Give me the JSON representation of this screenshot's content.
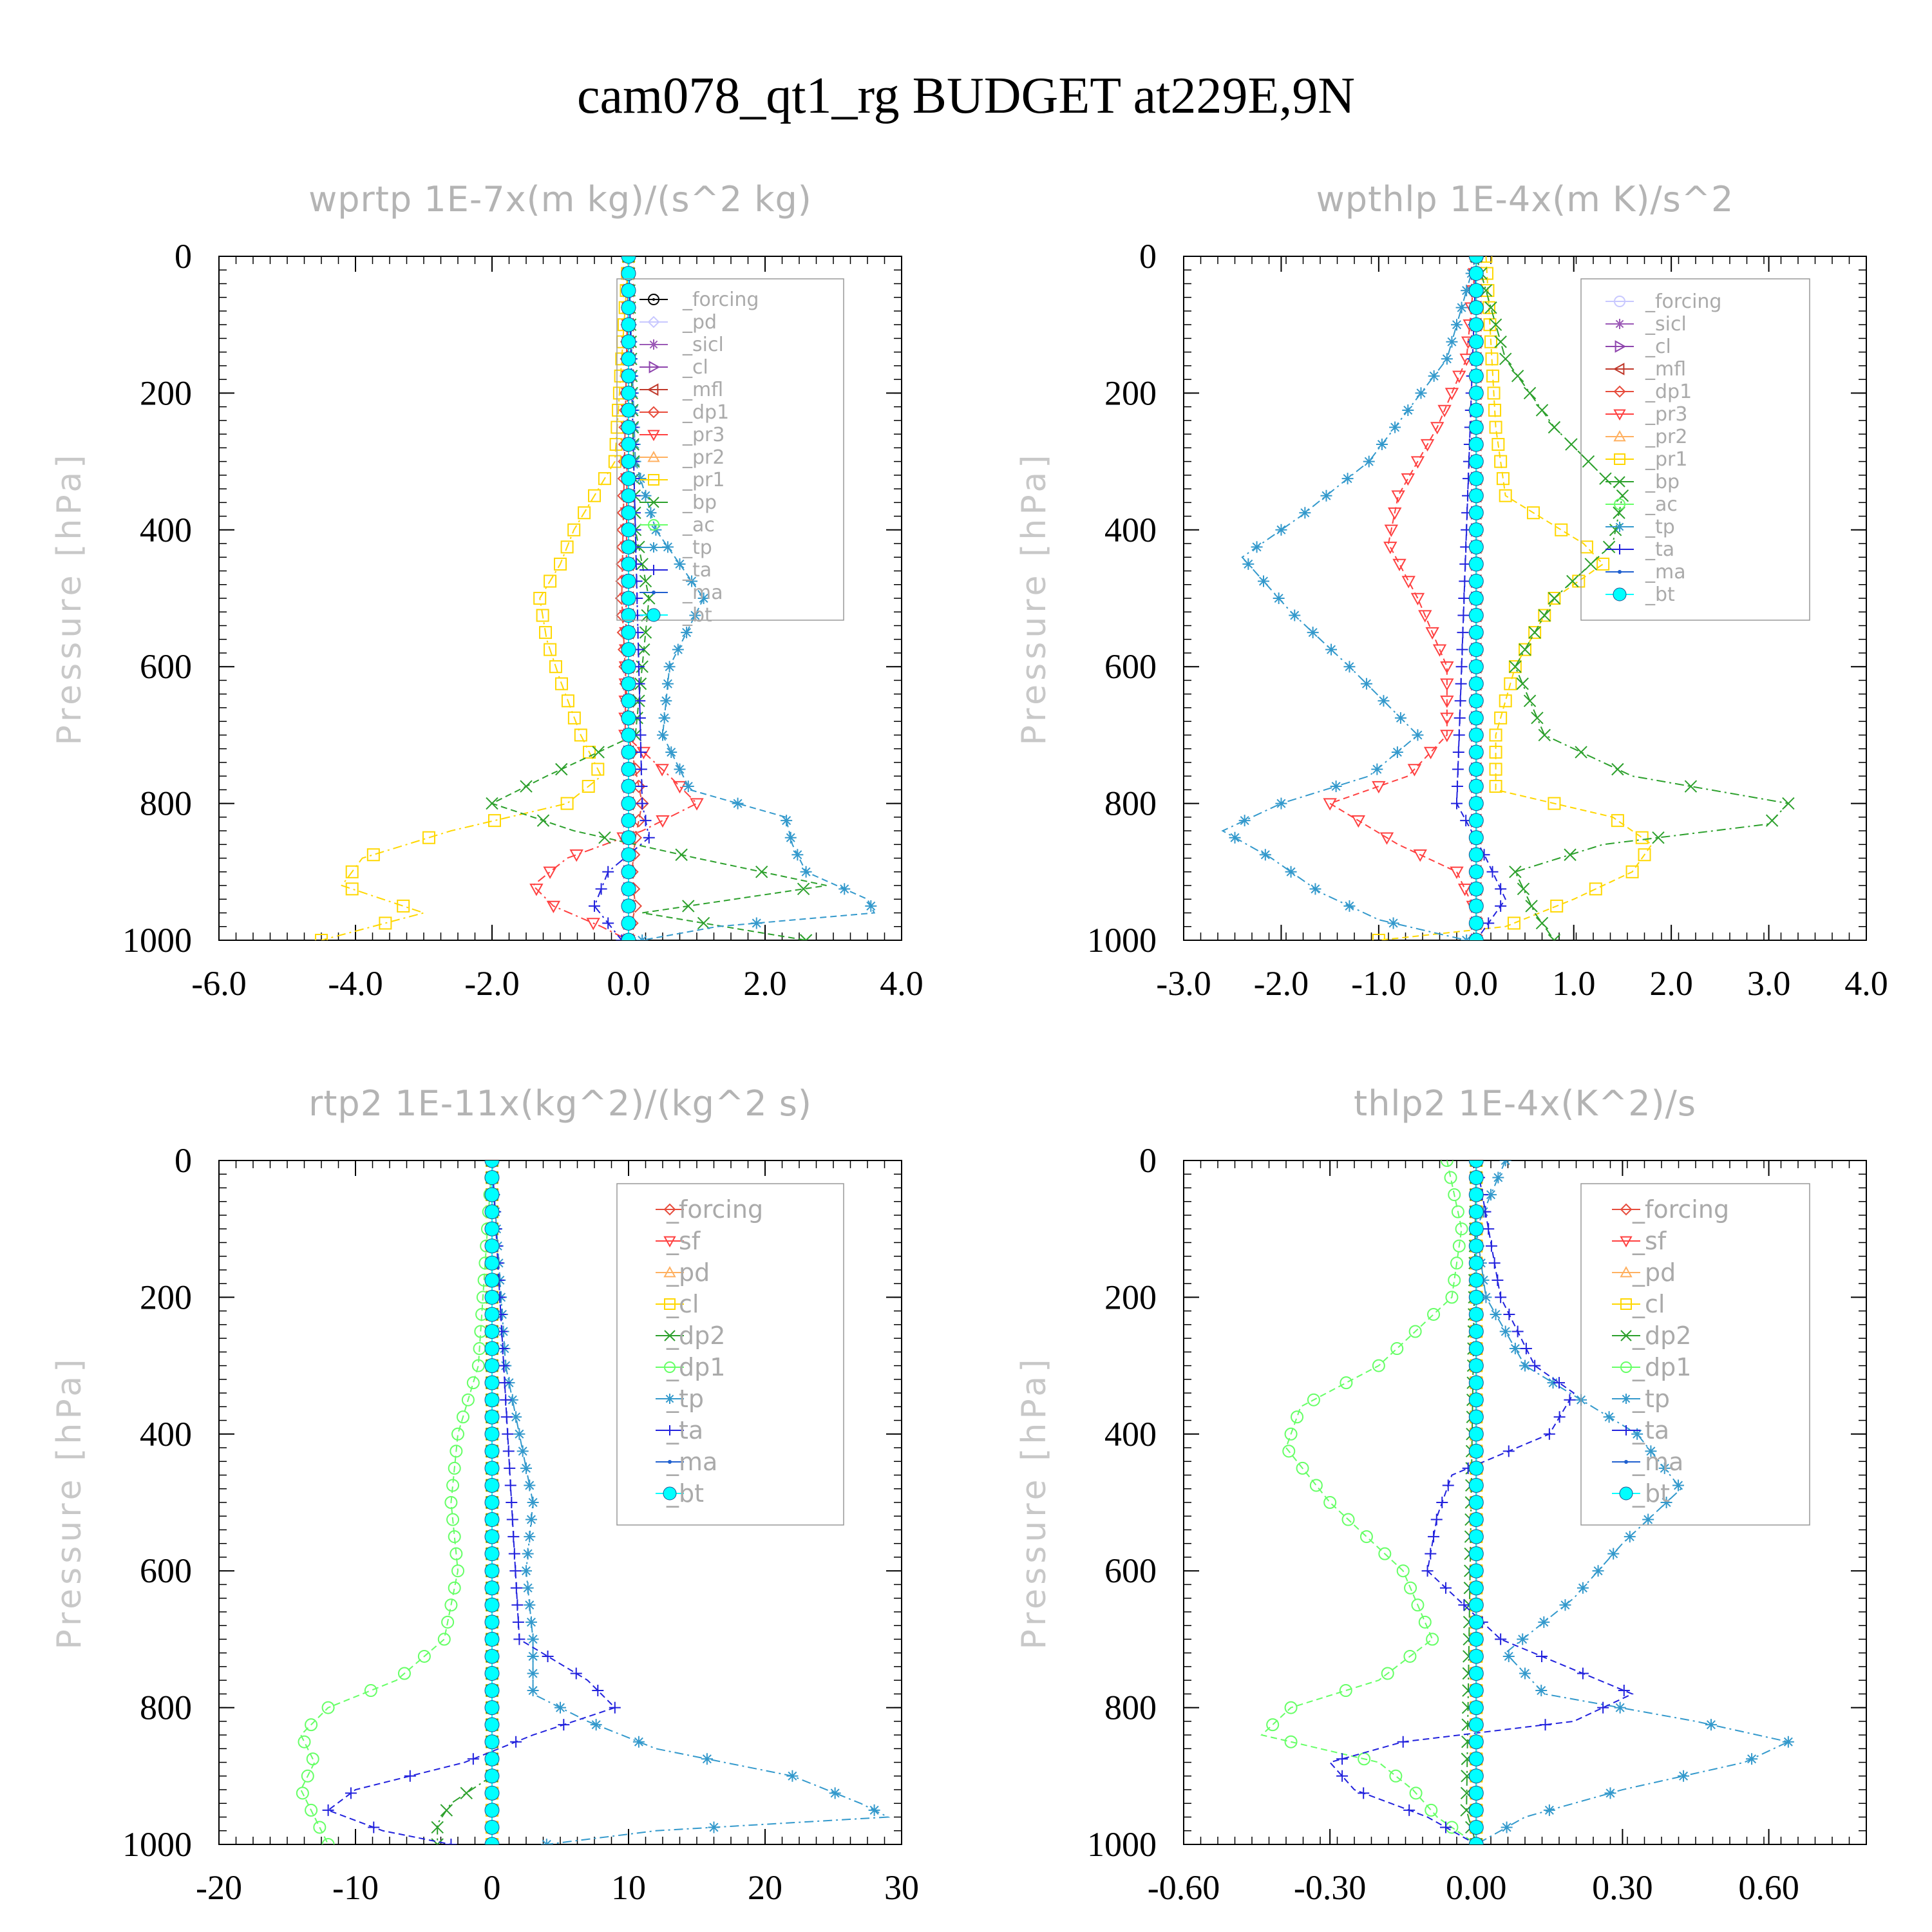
{
  "title": "cam078_qt1_rg  BUDGET at229E,9N",
  "chart_data": [
    {
      "type": "line",
      "title": "wprtp  1E-7x(m kg)/(s^2 kg)",
      "ylabel": "Pressure [hPa]",
      "xlim": [
        -6,
        4
      ],
      "ylim": [
        1000,
        0
      ],
      "xticks": [
        "-6.0",
        "-4.0",
        "-2.0",
        "0.0",
        "2.0",
        "4.0"
      ],
      "yticks": [
        "0",
        "200",
        "400",
        "600",
        "800",
        "1000"
      ],
      "legend": "top-right",
      "series": [
        {
          "name": "_forcing",
          "color": "#000000",
          "marker": "circle-dot",
          "p": [
            0,
            1000
          ],
          "x": [
            0,
            0
          ]
        },
        {
          "name": "_pd",
          "color": "#c8c8ff",
          "marker": "diamond",
          "p": [
            0,
            1000
          ],
          "x": [
            0,
            0
          ]
        },
        {
          "name": "_sicl",
          "color": "#9b59b6",
          "marker": "star",
          "p": [
            0,
            1000
          ],
          "x": [
            0,
            0
          ]
        },
        {
          "name": "_cl",
          "color": "#8e44ad",
          "marker": "tri-right",
          "p": [
            0,
            1000
          ],
          "x": [
            0,
            0
          ]
        },
        {
          "name": "_mfl",
          "color": "#c0392b",
          "marker": "tri-left",
          "p": [
            0,
            1000
          ],
          "x": [
            0,
            0
          ]
        },
        {
          "name": "_dp1",
          "color": "#e74c3c",
          "marker": "diamond",
          "p": [
            0,
            500,
            700,
            800,
            850,
            900,
            950,
            1000
          ],
          "x": [
            0,
            -0.1,
            0,
            0.2,
            0.1,
            0.05,
            0.1,
            0
          ]
        },
        {
          "name": "_pr3",
          "color": "#ff4040",
          "marker": "tri-down",
          "p": [
            0,
            700,
            760,
            800,
            840,
            880,
            920,
            950,
            980,
            1000
          ],
          "x": [
            0,
            -0.05,
            0.6,
            1.0,
            0.2,
            -0.9,
            -1.4,
            -1.1,
            -0.4,
            0
          ]
        },
        {
          "name": "_pr2",
          "color": "#ffb060",
          "marker": "triangle",
          "p": [
            0,
            1000
          ],
          "x": [
            0,
            0
          ]
        },
        {
          "name": "_pr1",
          "color": "#ffd700",
          "marker": "square",
          "p": [
            0,
            300,
            400,
            450,
            500,
            560,
            620,
            700,
            760,
            800,
            840,
            880,
            920,
            960,
            1000
          ],
          "x": [
            0,
            -0.2,
            -0.8,
            -1.0,
            -1.3,
            -1.2,
            -1.0,
            -0.7,
            -0.4,
            -0.9,
            -2.6,
            -3.9,
            -4.2,
            -3.0,
            -4.5
          ]
        },
        {
          "name": "_bp",
          "color": "#2ca02c",
          "marker": "x",
          "p": [
            0,
            400,
            500,
            600,
            700,
            760,
            800,
            840,
            880,
            920,
            960,
            1000
          ],
          "x": [
            0,
            0.1,
            0.3,
            0.2,
            0.1,
            -1.2,
            -2.0,
            -0.8,
            1.0,
            2.9,
            0.2,
            2.6
          ]
        },
        {
          "name": "_ac",
          "color": "#66ff66",
          "marker": "circle",
          "p": [
            0,
            1000
          ],
          "x": [
            0,
            0
          ]
        },
        {
          "name": "_tp",
          "color": "#3399cc",
          "marker": "asterisk",
          "p": [
            0,
            300,
            400,
            500,
            600,
            700,
            780,
            820,
            860,
            900,
            940,
            960,
            980,
            1000
          ],
          "x": [
            0,
            0.1,
            0.4,
            1.1,
            0.6,
            0.5,
            0.9,
            2.3,
            2.4,
            2.6,
            3.5,
            3.6,
            1.3,
            0.2
          ]
        },
        {
          "name": "_ta",
          "color": "#2222dd",
          "marker": "plus",
          "p": [
            0,
            800,
            850,
            900,
            950,
            1000
          ],
          "x": [
            0,
            0.2,
            0.3,
            -0.3,
            -0.5,
            -0.1
          ]
        },
        {
          "name": "_ma",
          "color": "#1f5fcf",
          "marker": "dot",
          "p": [
            0,
            1000
          ],
          "x": [
            0,
            0
          ]
        },
        {
          "name": "_bt",
          "color": "#00ffff",
          "marker": "filled",
          "p": [
            0,
            1000
          ],
          "x": [
            0,
            0
          ]
        }
      ]
    },
    {
      "type": "line",
      "title": "wpthlp  1E-4x(m K)/s^2",
      "ylabel": "Pressure [hPa]",
      "xlim": [
        -3,
        4
      ],
      "ylim": [
        1000,
        0
      ],
      "xticks": [
        "-3.0",
        "-2.0",
        "-1.0",
        "0.0",
        "1.0",
        "2.0",
        "3.0",
        "4.0"
      ],
      "yticks": [
        "0",
        "200",
        "400",
        "600",
        "800",
        "1000"
      ],
      "legend": "top-right",
      "series": [
        {
          "name": "_forcing",
          "color": "#c8c8ff",
          "marker": "circle",
          "p": [
            0,
            1000
          ],
          "x": [
            0,
            0
          ]
        },
        {
          "name": "_sicl",
          "color": "#9b59b6",
          "marker": "star",
          "p": [
            0,
            1000
          ],
          "x": [
            0,
            0
          ]
        },
        {
          "name": "_cl",
          "color": "#8e44ad",
          "marker": "tri-right",
          "p": [
            0,
            1000
          ],
          "x": [
            0,
            0
          ]
        },
        {
          "name": "_mfl",
          "color": "#c0392b",
          "marker": "tri-left",
          "p": [
            0,
            1000
          ],
          "x": [
            0,
            0
          ]
        },
        {
          "name": "_dp1",
          "color": "#e74c3c",
          "marker": "diamond",
          "p": [
            0,
            1000
          ],
          "x": [
            0,
            0
          ]
        },
        {
          "name": "_pr3",
          "color": "#ff4040",
          "marker": "tri-down",
          "p": [
            0,
            150,
            250,
            350,
            420,
            500,
            600,
            700,
            760,
            800,
            860,
            900,
            960,
            1000
          ],
          "x": [
            0,
            -0.1,
            -0.4,
            -0.8,
            -0.9,
            -0.6,
            -0.3,
            -0.3,
            -0.7,
            -1.5,
            -0.8,
            -0.2,
            0,
            0
          ]
        },
        {
          "name": "_pr2",
          "color": "#ffb060",
          "marker": "triangle",
          "p": [
            0,
            1000
          ],
          "x": [
            0,
            0
          ]
        },
        {
          "name": "_pr1",
          "color": "#ffd700",
          "marker": "square",
          "p": [
            0,
            250,
            350,
            420,
            450,
            500,
            600,
            700,
            780,
            820,
            860,
            900,
            940,
            980,
            1000
          ],
          "x": [
            0.1,
            0.2,
            0.3,
            1.1,
            1.3,
            0.8,
            0.4,
            0.2,
            0.2,
            1.4,
            1.8,
            1.6,
            1.0,
            0.3,
            -1.0
          ]
        },
        {
          "name": "_bp",
          "color": "#2ca02c",
          "marker": "x",
          "p": [
            0,
            150,
            250,
            350,
            420,
            500,
            600,
            700,
            760,
            800,
            830,
            860,
            900,
            960,
            1000
          ],
          "x": [
            0,
            0.3,
            0.8,
            1.5,
            1.4,
            0.8,
            0.4,
            0.7,
            1.6,
            3.2,
            3.0,
            1.3,
            0.4,
            0.6,
            0.8
          ]
        },
        {
          "name": "_ac",
          "color": "#66ff66",
          "marker": "circle",
          "p": [
            0,
            1000
          ],
          "x": [
            0,
            0
          ]
        },
        {
          "name": "_tp",
          "color": "#3399cc",
          "marker": "asterisk",
          "p": [
            0,
            150,
            300,
            380,
            440,
            520,
            600,
            700,
            760,
            800,
            840,
            880,
            930,
            970,
            1000
          ],
          "x": [
            0,
            -0.3,
            -1.1,
            -1.8,
            -2.4,
            -1.9,
            -1.3,
            -0.6,
            -1.1,
            -2.0,
            -2.6,
            -2.1,
            -1.6,
            -1.0,
            -0.1
          ]
        },
        {
          "name": "_ta",
          "color": "#2222dd",
          "marker": "plus",
          "p": [
            0,
            800,
            880,
            940,
            1000
          ],
          "x": [
            0,
            -0.2,
            0.1,
            0.3,
            0
          ]
        },
        {
          "name": "_ma",
          "color": "#1f5fcf",
          "marker": "dot",
          "p": [
            0,
            1000
          ],
          "x": [
            0,
            0
          ]
        },
        {
          "name": "_bt",
          "color": "#00ffff",
          "marker": "filled",
          "p": [
            0,
            1000
          ],
          "x": [
            0,
            0
          ]
        }
      ]
    },
    {
      "type": "line",
      "title": "rtp2  1E-11x(kg^2)/(kg^2 s)",
      "ylabel": "Pressure [hPa]",
      "xlim": [
        -20,
        30
      ],
      "ylim": [
        1000,
        0
      ],
      "xticks": [
        "-20",
        "-10",
        "0",
        "10",
        "20",
        "30"
      ],
      "yticks": [
        "0",
        "200",
        "400",
        "600",
        "800",
        "1000"
      ],
      "legend": "top-right",
      "series": [
        {
          "name": "_forcing",
          "color": "#e74c3c",
          "marker": "diamond",
          "p": [
            0,
            1000
          ],
          "x": [
            0,
            0
          ]
        },
        {
          "name": "_sf",
          "color": "#ff4040",
          "marker": "tri-down",
          "p": [
            0,
            1000
          ],
          "x": [
            0,
            0
          ]
        },
        {
          "name": "_pd",
          "color": "#ffb060",
          "marker": "triangle",
          "p": [
            0,
            1000
          ],
          "x": [
            0,
            0
          ]
        },
        {
          "name": "_cl",
          "color": "#ffd700",
          "marker": "square",
          "p": [
            0,
            1000
          ],
          "x": [
            0,
            0
          ]
        },
        {
          "name": "_dp2",
          "color": "#2ca02c",
          "marker": "x",
          "p": [
            0,
            900,
            940,
            970,
            1000
          ],
          "x": [
            0,
            0,
            -3,
            -4,
            -4
          ]
        },
        {
          "name": "_dp1",
          "color": "#66ff66",
          "marker": "circle",
          "p": [
            0,
            300,
            400,
            500,
            600,
            700,
            760,
            800,
            840,
            880,
            920,
            960,
            1000
          ],
          "x": [
            0,
            -1,
            -2.5,
            -3,
            -2.5,
            -3.5,
            -7,
            -12,
            -14,
            -13,
            -14,
            -13,
            -12
          ]
        },
        {
          "name": "_tp",
          "color": "#3399cc",
          "marker": "asterisk",
          "p": [
            0,
            300,
            400,
            500,
            600,
            700,
            780,
            820,
            860,
            900,
            940,
            960,
            980,
            1000
          ],
          "x": [
            0,
            1,
            2,
            3,
            2.5,
            3,
            3,
            7,
            12,
            22,
            27,
            29,
            12,
            4
          ]
        },
        {
          "name": "_ta",
          "color": "#2222dd",
          "marker": "plus",
          "p": [
            0,
            700,
            760,
            800,
            840,
            880,
            920,
            950,
            980,
            1000
          ],
          "x": [
            0,
            2,
            7,
            9,
            3,
            -2,
            -10,
            -12,
            -8,
            -3
          ]
        },
        {
          "name": "_ma",
          "color": "#1f5fcf",
          "marker": "dot",
          "p": [
            0,
            1000
          ],
          "x": [
            0,
            0
          ]
        },
        {
          "name": "_bt",
          "color": "#00ffff",
          "marker": "filled",
          "p": [
            0,
            1000
          ],
          "x": [
            0,
            0
          ]
        }
      ]
    },
    {
      "type": "line",
      "title": "thlp2  1E-4x(K^2)/s",
      "ylabel": "Pressure [hPa]",
      "xlim": [
        -0.6,
        0.8
      ],
      "ylim": [
        1000,
        0
      ],
      "xticks": [
        "-0.60",
        "-0.30",
        "0.00",
        "0.30",
        "0.60"
      ],
      "yticks": [
        "0",
        "200",
        "400",
        "600",
        "800",
        "1000"
      ],
      "legend": "top-right",
      "series": [
        {
          "name": "_forcing",
          "color": "#e74c3c",
          "marker": "diamond",
          "p": [
            0,
            1000
          ],
          "x": [
            0,
            0
          ]
        },
        {
          "name": "_sf",
          "color": "#ff4040",
          "marker": "tri-down",
          "p": [
            0,
            1000
          ],
          "x": [
            0,
            0
          ]
        },
        {
          "name": "_pd",
          "color": "#ffb060",
          "marker": "triangle",
          "p": [
            0,
            1000
          ],
          "x": [
            0,
            0
          ]
        },
        {
          "name": "_cl",
          "color": "#ffd700",
          "marker": "square",
          "p": [
            0,
            1000
          ],
          "x": [
            0,
            0
          ]
        },
        {
          "name": "_dp2",
          "color": "#2ca02c",
          "marker": "x",
          "p": [
            0,
            950,
            1000
          ],
          "x": [
            0,
            -0.02,
            0
          ]
        },
        {
          "name": "_dp1",
          "color": "#66ff66",
          "marker": "circle",
          "p": [
            0,
            100,
            200,
            300,
            360,
            420,
            500,
            600,
            700,
            760,
            800,
            840,
            880,
            920,
            960,
            1000
          ],
          "x": [
            -0.06,
            -0.03,
            -0.05,
            -0.2,
            -0.36,
            -0.39,
            -0.3,
            -0.15,
            -0.09,
            -0.2,
            -0.38,
            -0.44,
            -0.2,
            -0.13,
            -0.08,
            0
          ]
        },
        {
          "name": "_tp",
          "color": "#3399cc",
          "marker": "asterisk",
          "p": [
            0,
            100,
            200,
            300,
            400,
            480,
            560,
            640,
            720,
            780,
            820,
            850,
            880,
            920,
            960,
            1000
          ],
          "x": [
            0.06,
            0,
            0.02,
            0.1,
            0.33,
            0.42,
            0.3,
            0.2,
            0.06,
            0.14,
            0.45,
            0.64,
            0.55,
            0.3,
            0.1,
            0
          ]
        },
        {
          "name": "_ta",
          "color": "#2222dd",
          "marker": "plus",
          "p": [
            0,
            200,
            300,
            340,
            400,
            460,
            520,
            600,
            700,
            780,
            820,
            850,
            880,
            920,
            960,
            1000
          ],
          "x": [
            0,
            0.05,
            0.12,
            0.2,
            0.15,
            -0.05,
            -0.08,
            -0.1,
            0.05,
            0.32,
            0.2,
            -0.15,
            -0.3,
            -0.25,
            -0.1,
            0
          ]
        },
        {
          "name": "_ma",
          "color": "#1f5fcf",
          "marker": "dot",
          "p": [
            0,
            1000
          ],
          "x": [
            0,
            0
          ]
        },
        {
          "name": "_bt",
          "color": "#00ffff",
          "marker": "filled",
          "p": [
            0,
            1000
          ],
          "x": [
            0,
            0
          ]
        }
      ]
    }
  ]
}
